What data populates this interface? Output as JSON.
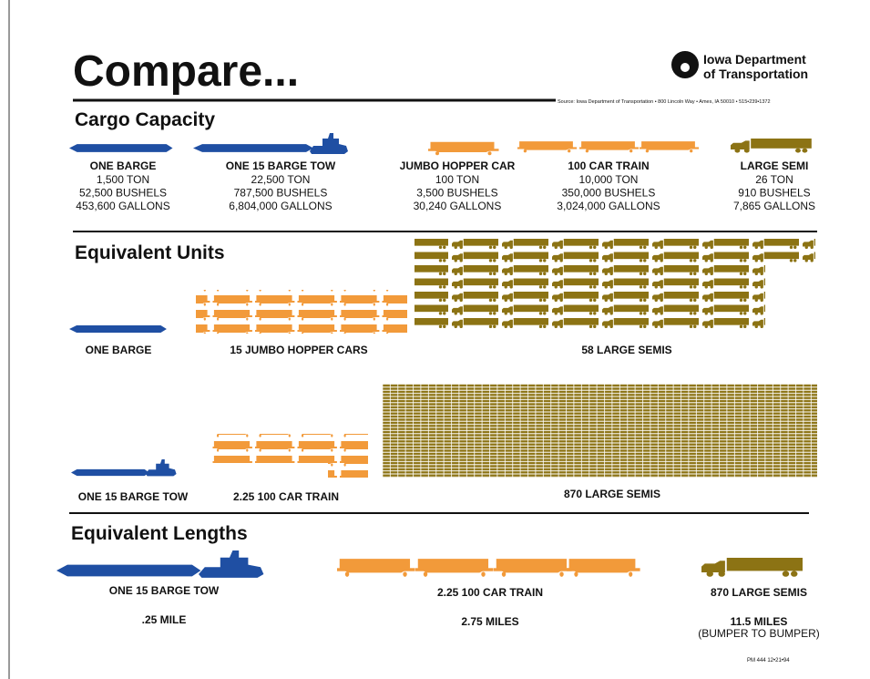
{
  "header": {
    "title": "Compare...",
    "logo_text": [
      "Iowa Department",
      "of Transportation"
    ],
    "source": "Source: Iowa Department of Transportation • 800 Lincoln Way • Ames, IA 50010 • 515•239•1372"
  },
  "cargo_capacity": {
    "heading": "Cargo Capacity",
    "items": [
      {
        "name": "ONE BARGE",
        "lines": [
          "1,500 TON",
          "52,500 BUSHELS",
          "453,600 GALLONS"
        ]
      },
      {
        "name": "ONE 15 BARGE TOW",
        "lines": [
          "22,500 TON",
          "787,500 BUSHELS",
          "6,804,000 GALLONS"
        ]
      },
      {
        "name": "JUMBO HOPPER CAR",
        "lines": [
          "100 TON",
          "3,500 BUSHELS",
          "30,240 GALLONS"
        ]
      },
      {
        "name": "100 CAR TRAIN",
        "lines": [
          "10,000 TON",
          "350,000 BUSHELS",
          "3,024,000 GALLONS"
        ]
      },
      {
        "name": "LARGE SEMI",
        "lines": [
          "26 TON",
          "910 BUSHELS",
          "7,865 GALLONS"
        ]
      }
    ]
  },
  "equivalent_units": {
    "heading": "Equivalent Units",
    "rows": [
      [
        "ONE BARGE",
        "15 JUMBO HOPPER CARS",
        "58 LARGE SEMIS"
      ],
      [
        "ONE 15 BARGE TOW",
        "2.25 100 CAR TRAIN",
        "870 LARGE SEMIS"
      ]
    ]
  },
  "equivalent_lengths": {
    "heading": "Equivalent Lengths",
    "items": [
      {
        "name": "ONE 15 BARGE TOW",
        "length": ".25 MILE"
      },
      {
        "name": "2.25 100 CAR TRAIN",
        "length": "2.75 MILES"
      },
      {
        "name": "870 LARGE SEMIS",
        "length": "11.5 MILES",
        "note": "(BUMPER TO BUMPER)"
      }
    ]
  },
  "footer": "PM 444   12•21•94"
}
